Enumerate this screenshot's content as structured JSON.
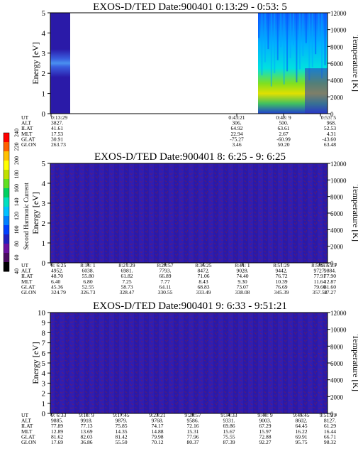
{
  "colors": {
    "background_spectrum": "#2a1aa8",
    "background_spectrum_alt": "#3a2ad8",
    "noise": "#8a1a3a",
    "white_gap": "#ffffff"
  },
  "colorbar": {
    "label": "Second Harmonic Current",
    "ticks": [
      "40",
      "60",
      "80",
      "100",
      "120",
      "140",
      "160",
      "180",
      "200",
      "220",
      "240"
    ],
    "colors": [
      "#000000",
      "#4a0a60",
      "#6a10a0",
      "#2020c0",
      "#0040ff",
      "#0080ff",
      "#00c0ff",
      "#00e0c0",
      "#00d060",
      "#60e020",
      "#c0e000",
      "#ffff00",
      "#ffc000",
      "#ff6000",
      "#ff0000"
    ]
  },
  "chart_data": [
    {
      "type": "heatmap",
      "title": "EXOS-D/TED   Date:900401   0:13:29 - 0:53: 5",
      "ylabel": "Energy [eV]",
      "ylabel_right": "Temperature [K]",
      "ylim": [
        0,
        5
      ],
      "ylim_right": [
        0,
        12000
      ],
      "yticks": [
        "0",
        "1",
        "2",
        "3",
        "4",
        "5"
      ],
      "yticks_right": [
        "0",
        "2000",
        "4000",
        "6000",
        "8000",
        "10000",
        "12000"
      ],
      "data_segments": [
        {
          "t_start": "0:13:29",
          "t_end": "0:17:30",
          "note": "low-energy enhancement ~2.3-3 eV"
        },
        {
          "t_start": "0:43:21",
          "t_end": "0:53: 5",
          "note": "broadband intense emission up to 5 eV"
        }
      ],
      "info_rows": [
        {
          "label": "UT",
          "values": [
            "0:13:29",
            "0:43:21",
            "0:48: 9",
            "0:53: 5"
          ]
        },
        {
          "label": "ALT",
          "values": [
            "3827.",
            "306.",
            "500.",
            "968."
          ]
        },
        {
          "label": "ILAT",
          "values": [
            "41.61",
            "64.92",
            "63.61",
            "52.53"
          ]
        },
        {
          "label": "MLT",
          "values": [
            "17.53",
            "22.94",
            "2.67",
            "4.31"
          ]
        },
        {
          "label": "GLAT",
          "values": [
            "30.91",
            "-75.27",
            "-60.99",
            "-43.60"
          ]
        },
        {
          "label": "GLON",
          "values": [
            "263.73",
            "3.46",
            "50.20",
            "63.48"
          ]
        }
      ]
    },
    {
      "type": "heatmap",
      "title": "EXOS-D/TED   Date:900401   8: 6:25 - 9: 6:25",
      "ylabel": "Energy [eV]",
      "ylabel_right": "Temperature [K]",
      "ylim": [
        0,
        5
      ],
      "ylim_right": [
        0,
        12000
      ],
      "yticks": [
        "0",
        "1",
        "2",
        "3",
        "4",
        "5"
      ],
      "yticks_right": [
        "0",
        "2000",
        "4000",
        "6000",
        "8000",
        "10000",
        "12000"
      ],
      "info_rows": [
        {
          "label": "UT",
          "values": [
            "8: 6:25",
            "8:14: 1",
            "8:21:29",
            "8:28:57",
            "8:36:25",
            "8:44: 1",
            "8:51:29",
            "8:58:57",
            "9: 6:25"
          ]
        },
        {
          "label": "ALT",
          "values": [
            "4952.",
            "6038.",
            "6981.",
            "7793.",
            "8472.",
            "9028.",
            "9442.",
            "9727.",
            "9884."
          ]
        },
        {
          "label": "ILAT",
          "values": [
            "48.70",
            "55.80",
            "61.82",
            "66.89",
            "71.06",
            "74.40",
            "76.72",
            "77.91",
            "77.90"
          ]
        },
        {
          "label": "MLT",
          "values": [
            "6.40",
            "6.80",
            "7.25",
            "7.77",
            "8.43",
            "9.30",
            "10.39",
            "11.64",
            "12.87"
          ]
        },
        {
          "label": "GLAT",
          "values": [
            "45.36",
            "52.55",
            "58.73",
            "64.11",
            "68.83",
            "73.07",
            "76.69",
            "79.66",
            "81.60"
          ]
        },
        {
          "label": "GLON",
          "values": [
            "324.79",
            "326.73",
            "328.47",
            "330.55",
            "333.49",
            "338.08",
            "345.39",
            "357.58",
            "17.27"
          ]
        }
      ]
    },
    {
      "type": "heatmap",
      "title": "EXOS-D/TED   Date:900401   9: 6:33 - 9:51:21",
      "ylabel": "Energy [eV]",
      "ylabel_right": "Temperature [K]",
      "ylim": [
        0,
        10
      ],
      "ylim_right": [
        0,
        12000
      ],
      "yticks": [
        "0",
        "1",
        "2",
        "3",
        "4",
        "5",
        "6",
        "7",
        "8",
        "9",
        "10"
      ],
      "yticks_right": [
        "0",
        "2000",
        "4000",
        "6000",
        "8000",
        "10000",
        "12000"
      ],
      "info_rows": [
        {
          "label": "UT",
          "values": [
            "9: 6:33",
            "9:13: 9",
            "9:17:45",
            "9:23:21",
            "9:28:57",
            "9:34:33",
            "9:40: 9",
            "9:45:45",
            "9:51:21"
          ]
        },
        {
          "label": "ALT",
          "values": [
            "9885.",
            "9918.",
            "9879.",
            "9768.",
            "9586.",
            "9331.",
            "9003.",
            "8602.",
            "8127."
          ]
        },
        {
          "label": "ILAT",
          "values": [
            "77.89",
            "77.13",
            "75.85",
            "74.17",
            "72.16",
            "69.86",
            "67.29",
            "64.45",
            "61.29"
          ]
        },
        {
          "label": "MLT",
          "values": [
            "12.89",
            "13.69",
            "14.35",
            "14.88",
            "15.31",
            "15.67",
            "15.97",
            "16.22",
            "16.44"
          ]
        },
        {
          "label": "GLAT",
          "values": [
            "81.62",
            "82.03",
            "81.42",
            "79.98",
            "77.96",
            "75.55",
            "72.88",
            "69.91",
            "66.71"
          ]
        },
        {
          "label": "GLON",
          "values": [
            "17.69",
            "36.86",
            "55.50",
            "70.12",
            "80.37",
            "87.39",
            "92.27",
            "95.75",
            "98.32"
          ]
        }
      ]
    }
  ]
}
